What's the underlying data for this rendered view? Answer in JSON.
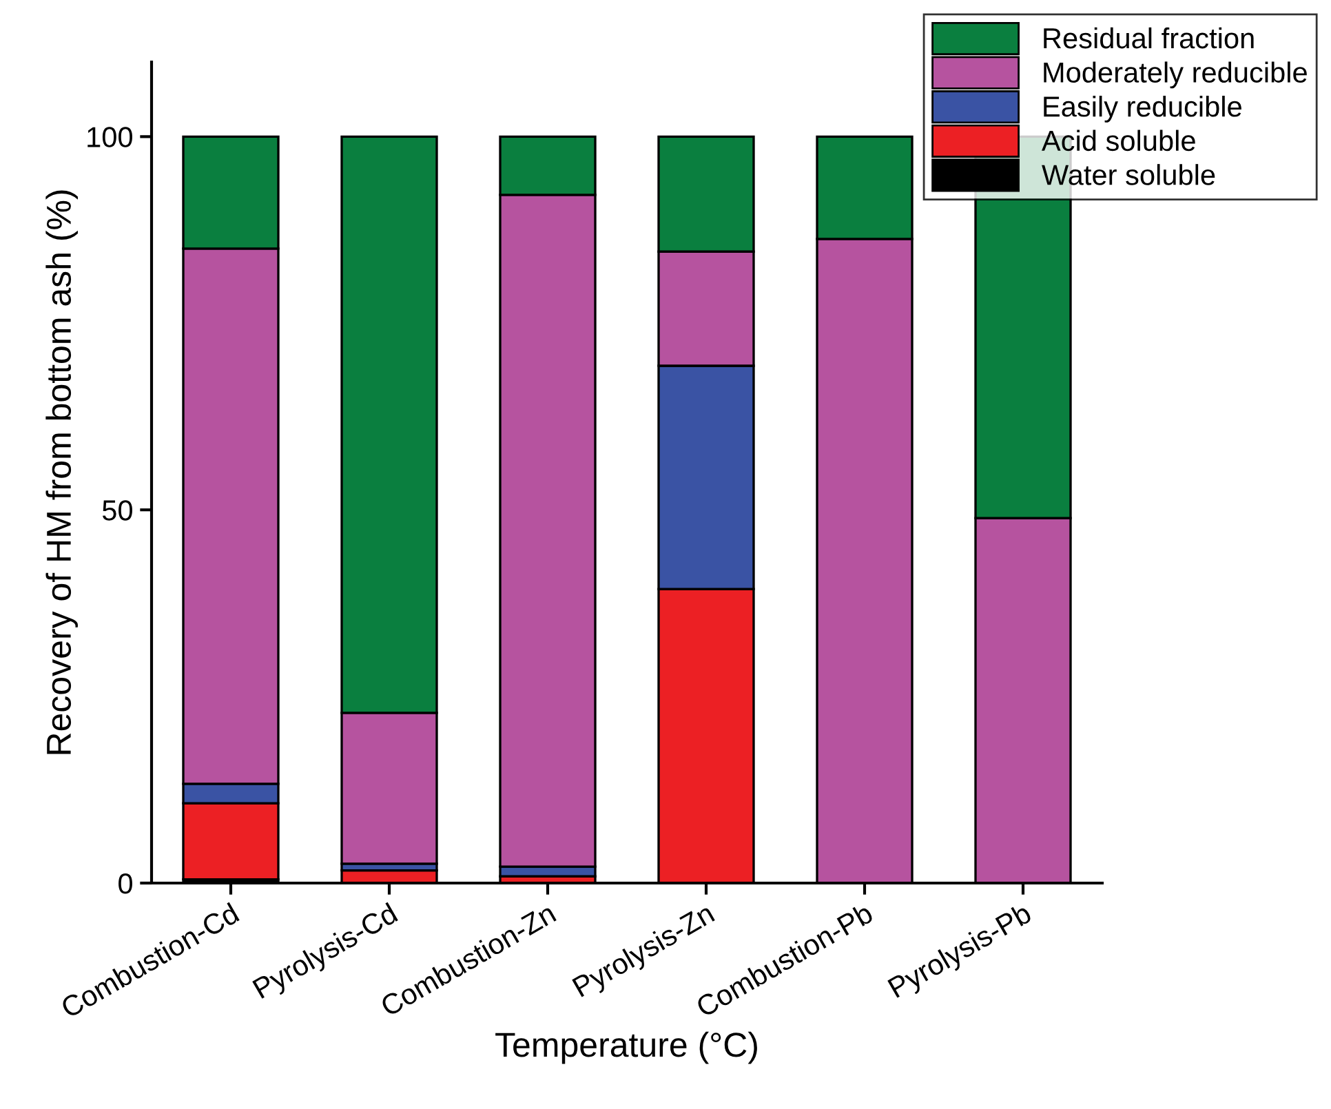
{
  "chart_data": {
    "type": "bar",
    "stacked": true,
    "xlabel": "Temperature (°C)",
    "ylabel": "Recovery of HM from bottom ash (%)",
    "categories": [
      "Combustion-Cd",
      "Pyrolysis-Cd",
      "Combustion-Zn",
      "Pyrolysis-Zn",
      "Combustion-Pb",
      "Pyrolysis-Pb"
    ],
    "series": [
      {
        "name": "Water soluble",
        "color": "#000000",
        "values": [
          0.5,
          0,
          0,
          0,
          0,
          0
        ]
      },
      {
        "name": "Acid soluble",
        "color": "#ec2024",
        "values": [
          10.2,
          1.7,
          0.9,
          39.4,
          0,
          0
        ]
      },
      {
        "name": "Easily reducible",
        "color": "#3a53a4",
        "values": [
          2.6,
          0.9,
          1.3,
          29.9,
          0,
          0
        ]
      },
      {
        "name": "Moderately reducible",
        "color": "#b6539f",
        "values": [
          71.7,
          20.2,
          90,
          15.3,
          86.3,
          48.9
        ]
      },
      {
        "name": "Residual fraction",
        "color": "#0a7f3f",
        "values": [
          15,
          77.2,
          7.8,
          15.4,
          13.7,
          51.1
        ]
      }
    ],
    "ylim": [
      0,
      110
    ],
    "yticks": [
      0,
      50,
      100
    ],
    "grid": false,
    "legend": "top right"
  }
}
